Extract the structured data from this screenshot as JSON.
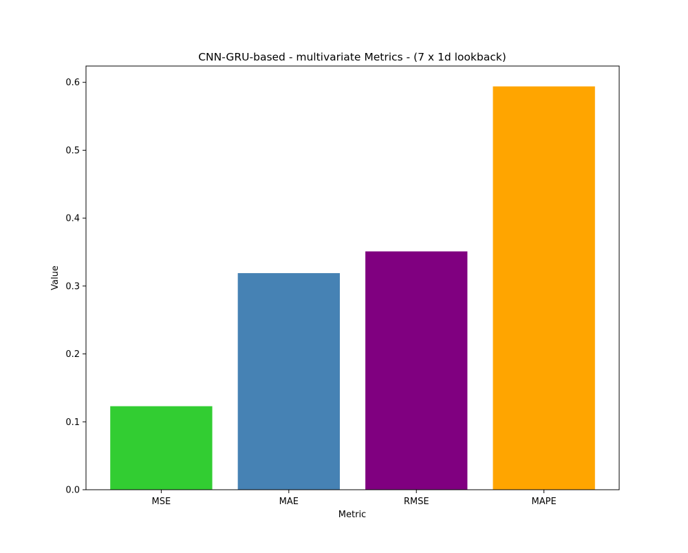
{
  "chart_data": {
    "type": "bar",
    "title": "CNN-GRU-based - multivariate Metrics - (7 x 1d lookback)",
    "xlabel": "Metric",
    "ylabel": "Value",
    "categories": [
      "MSE",
      "MAE",
      "RMSE",
      "MAPE"
    ],
    "values": [
      0.123,
      0.319,
      0.351,
      0.594
    ],
    "colors": [
      "#32cd32",
      "#4682b4",
      "#800080",
      "#ffa500"
    ],
    "ylim": [
      0,
      0.624
    ],
    "yticks": [
      0.0,
      0.1,
      0.2,
      0.3,
      0.4,
      0.5,
      0.6
    ],
    "ytick_labels": [
      "0.0",
      "0.1",
      "0.2",
      "0.3",
      "0.4",
      "0.5",
      "0.6"
    ],
    "grid": false,
    "legend": "none"
  }
}
